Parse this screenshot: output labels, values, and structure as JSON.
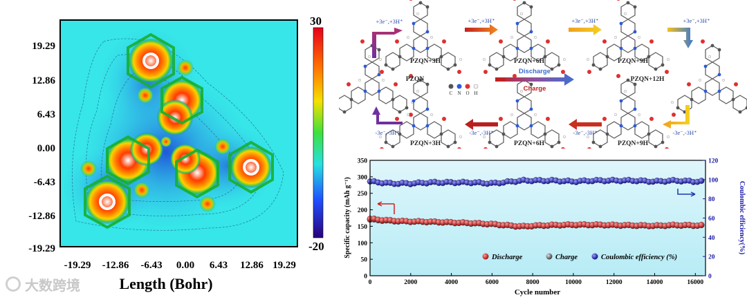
{
  "left_map": {
    "y_ticks": [
      "19.29",
      "12.86",
      "6.43",
      "0.00",
      "-6.43",
      "-12.86",
      "-19.29"
    ],
    "x_ticks": [
      "-19.29",
      "-12.86",
      "-6.43",
      "0.00",
      "6.43",
      "12.86",
      "19.29"
    ],
    "x_label": "Length (Bohr)",
    "colorbar": {
      "max": "30",
      "min": "-20"
    },
    "colors": {
      "background": "#36e6e8",
      "well": "#2a6fe0",
      "hot": "#ff4a00",
      "warm": "#ffd000",
      "ring": "#00c040"
    }
  },
  "scheme": {
    "top_row": [
      {
        "label": "PZQN+3H",
        "reaction": "+3e⁻,+3H⁺"
      },
      {
        "label": "PZQN+6H",
        "reaction": "+3e⁻,+3H⁺"
      },
      {
        "label": "PZQN+9H",
        "reaction": "+3e⁻,+3H⁺"
      }
    ],
    "start_label": "PZQN",
    "start_reaction": "+3e⁻,+3H⁺",
    "end_label": "PZQN+12H",
    "end_reaction": "+3e⁻,+3H⁺",
    "bottom_row": [
      {
        "label": "PZQN+3H",
        "reaction": "-3e⁻,-3H⁺"
      },
      {
        "label": "PZQN+6H",
        "reaction": "-3e⁻,-3H⁺"
      },
      {
        "label": "PZQN+9H",
        "reaction": "-3e⁻,-3H⁺"
      }
    ],
    "final_reaction": "-3e⁻,-3H⁺",
    "right_down_reaction": "-3e⁻,-3H⁺",
    "discharge": "Discharge",
    "charge": "Charge",
    "legend_atoms": [
      "C",
      "N",
      "O",
      "H"
    ],
    "atom_colors": {
      "C": "#555555",
      "N": "#2c5bd8",
      "O": "#e03030",
      "H": "#eeeeee"
    }
  },
  "chart_data": {
    "type": "scatter",
    "x": [
      0,
      500,
      1000,
      1500,
      2000,
      3000,
      4000,
      5000,
      6000,
      7000,
      7500,
      8000,
      9000,
      10000,
      11000,
      12000,
      13000,
      14000,
      15000,
      16000
    ],
    "series": [
      {
        "name": "Discharge",
        "axis": "left",
        "values": [
          173,
          170,
          168,
          166,
          165,
          164,
          162,
          160,
          157,
          152,
          150,
          152,
          154,
          155,
          155,
          154,
          153,
          152,
          154,
          153
        ]
      },
      {
        "name": "Charge",
        "axis": "left",
        "values": [
          170,
          168,
          166,
          165,
          164,
          163,
          161,
          159,
          156,
          151,
          149,
          151,
          153,
          154,
          154,
          153,
          152,
          151,
          153,
          152
        ]
      },
      {
        "name": "Coulombic efficiency (%)",
        "axis": "right",
        "values": [
          98,
          97,
          96,
          96,
          96,
          97,
          97,
          97,
          96,
          98,
          99,
          99,
          99,
          98,
          99,
          99,
          99,
          98,
          99,
          98
        ]
      }
    ],
    "xlabel": "Cycle number",
    "ylabel": "Specific capacity (mAh g⁻¹)",
    "y2label": "Coulombic efficiency(%)",
    "xlim": [
      0,
      16500
    ],
    "ylim": [
      0,
      350
    ],
    "y2lim": [
      0,
      120
    ],
    "x_ticks": [
      "0",
      "2000",
      "4000",
      "6000",
      "8000",
      "10000",
      "12000",
      "14000",
      "16000"
    ],
    "y_ticks": [
      "0",
      "50",
      "100",
      "150",
      "200",
      "250",
      "300",
      "350"
    ],
    "y2_ticks": [
      "0",
      "20",
      "40",
      "60",
      "80",
      "100",
      "120"
    ],
    "legend": [
      "Discharge",
      "Charge",
      "Coulombic efficiency (%)"
    ],
    "colors": {
      "Discharge": "#d42020",
      "Charge": "#707070",
      "Coulombic efficiency (%)": "#1a1aa8",
      "left_axis": "#000000",
      "right_axis": "#1a1aa8"
    }
  },
  "watermark": {
    "text": "大数跨境"
  }
}
